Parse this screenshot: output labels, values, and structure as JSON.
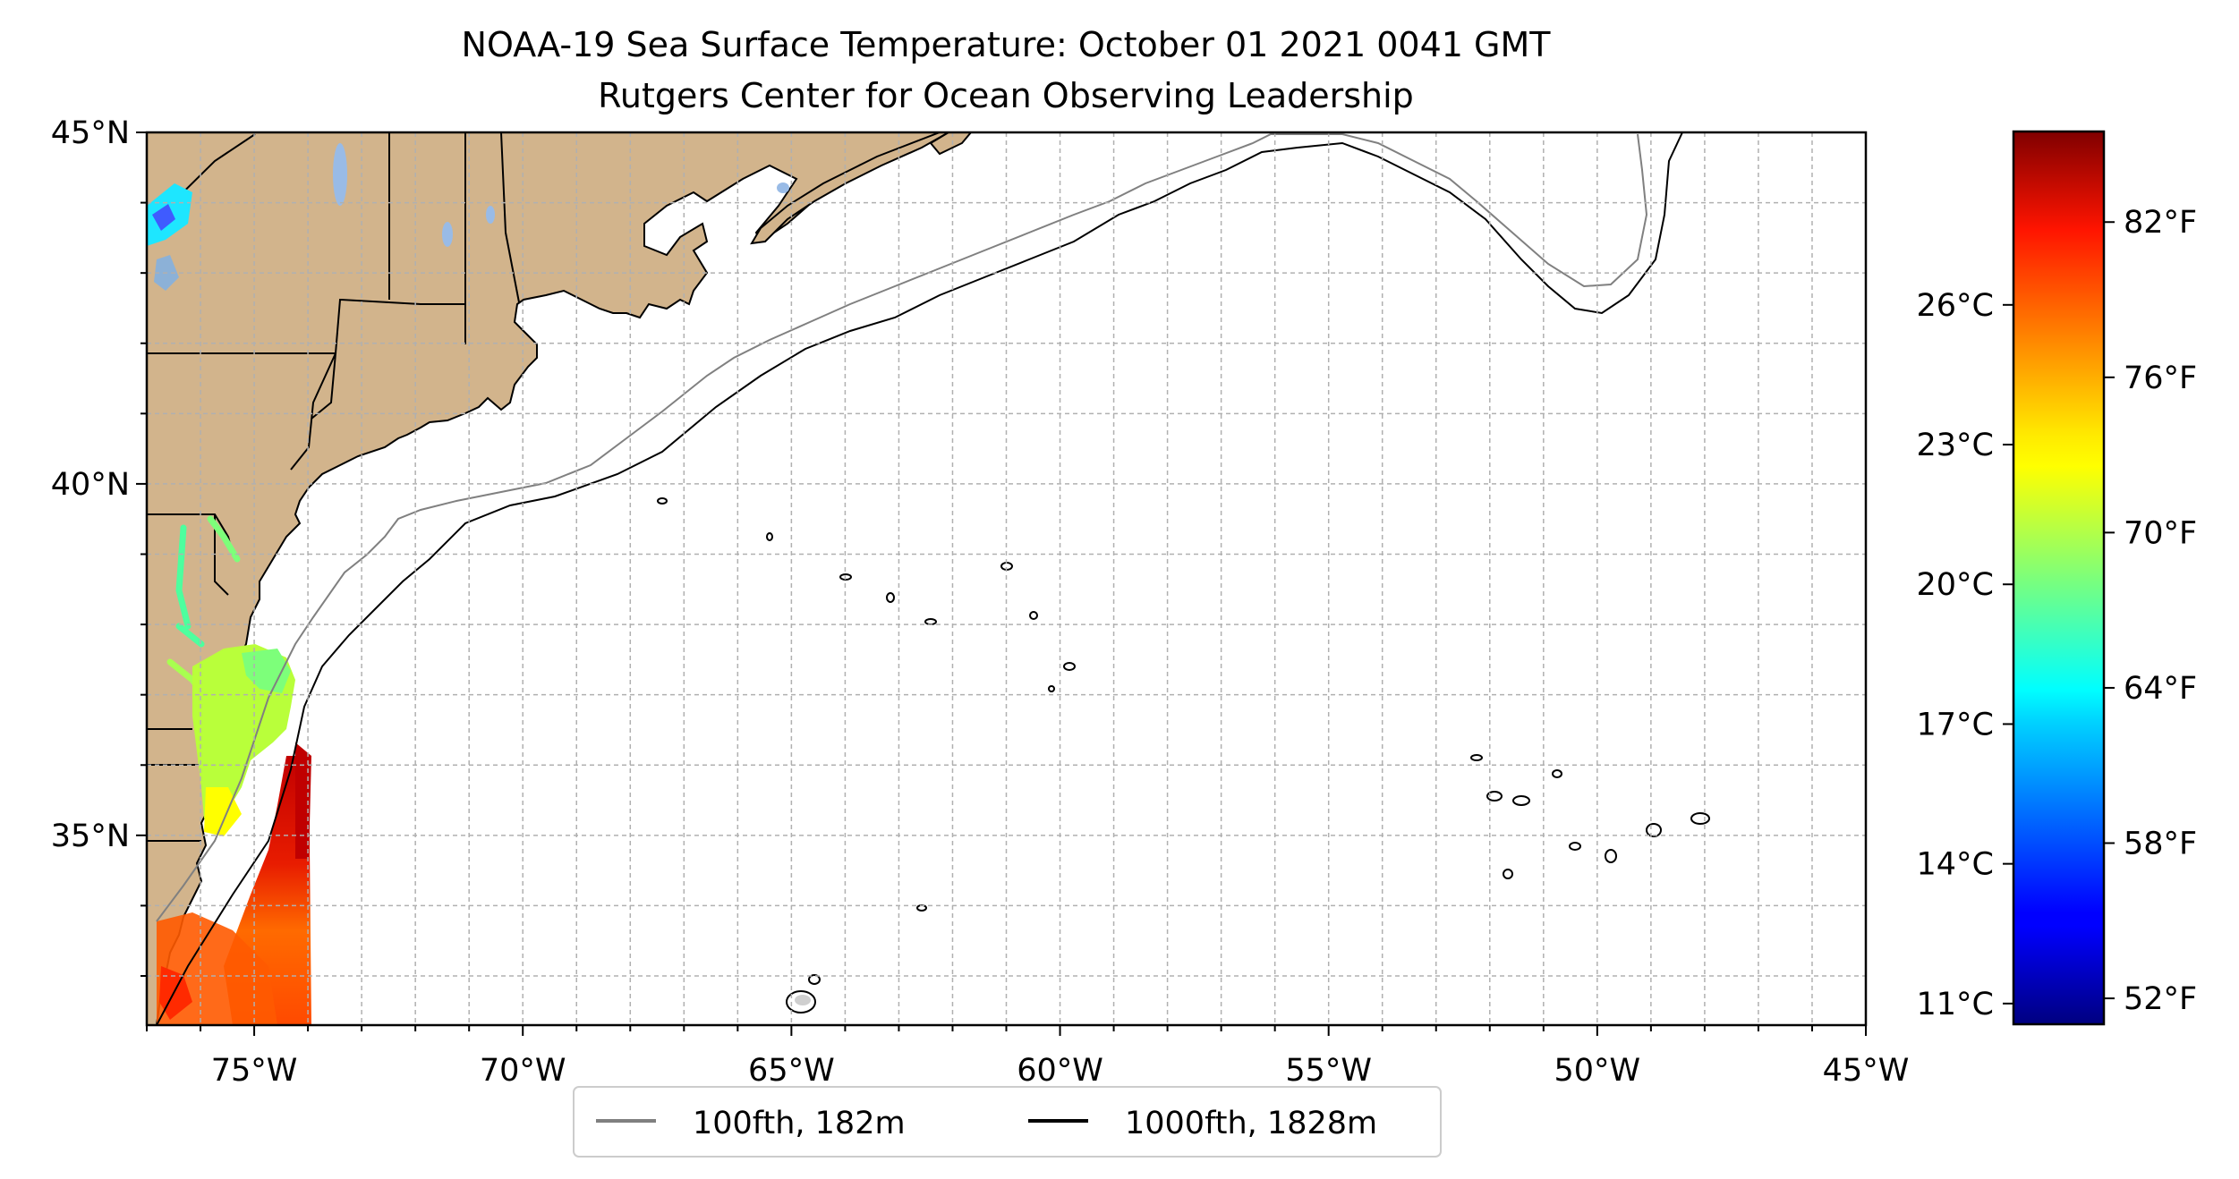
{
  "title_line1": "NOAA-19 Sea Surface Temperature: October 01 2021 0041 GMT",
  "title_line2": "Rutgers Center for Ocean Observing Leadership",
  "map": {
    "lon_range": [
      -77,
      -45
    ],
    "lat_range": [
      32.3,
      45
    ],
    "lon_ticks": [
      {
        "value": -75,
        "label": "75°W"
      },
      {
        "value": -70,
        "label": "70°W"
      },
      {
        "value": -65,
        "label": "65°W"
      },
      {
        "value": -60,
        "label": "60°W"
      },
      {
        "value": -55,
        "label": "55°W"
      },
      {
        "value": -50,
        "label": "50°W"
      },
      {
        "value": -45,
        "label": "45°W"
      }
    ],
    "lat_ticks": [
      {
        "value": 45,
        "label": "45°N"
      },
      {
        "value": 40,
        "label": "40°N"
      },
      {
        "value": 35,
        "label": "35°N"
      }
    ],
    "grid_step_deg": 1,
    "grid": true,
    "land_color": "#d2b48c",
    "lake_color": "#99bbe6"
  },
  "colorbar": {
    "colormap": "jet",
    "range_f": [
      51,
      85.5
    ],
    "fahrenheit_ticks": [
      {
        "value": 52,
        "label": "52°F"
      },
      {
        "value": 58,
        "label": "58°F"
      },
      {
        "value": 64,
        "label": "64°F"
      },
      {
        "value": 70,
        "label": "70°F"
      },
      {
        "value": 76,
        "label": "76°F"
      },
      {
        "value": 82,
        "label": "82°F"
      }
    ],
    "celsius_ticks": [
      {
        "value": 11,
        "label": "11°C"
      },
      {
        "value": 14,
        "label": "14°C"
      },
      {
        "value": 17,
        "label": "17°C"
      },
      {
        "value": 20,
        "label": "20°C"
      },
      {
        "value": 23,
        "label": "23°C"
      },
      {
        "value": 26,
        "label": "26°C"
      }
    ]
  },
  "legend": {
    "placement": "bottom-center",
    "items": [
      {
        "label": "100fth, 182m",
        "color": "#808080"
      },
      {
        "label": "1000fth, 1828m",
        "color": "#000000"
      }
    ]
  }
}
